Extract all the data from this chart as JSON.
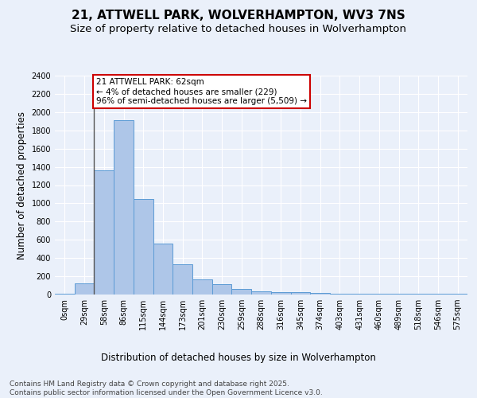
{
  "title": "21, ATTWELL PARK, WOLVERHAMPTON, WV3 7NS",
  "subtitle": "Size of property relative to detached houses in Wolverhampton",
  "xlabel": "Distribution of detached houses by size in Wolverhampton",
  "ylabel": "Number of detached properties",
  "footer_line1": "Contains HM Land Registry data © Crown copyright and database right 2025.",
  "footer_line2": "Contains public sector information licensed under the Open Government Licence v3.0.",
  "bin_labels": [
    "0sqm",
    "29sqm",
    "58sqm",
    "86sqm",
    "115sqm",
    "144sqm",
    "173sqm",
    "201sqm",
    "230sqm",
    "259sqm",
    "288sqm",
    "316sqm",
    "345sqm",
    "374sqm",
    "403sqm",
    "431sqm",
    "460sqm",
    "489sqm",
    "518sqm",
    "546sqm",
    "575sqm"
  ],
  "bar_values": [
    10,
    125,
    1360,
    1910,
    1050,
    560,
    335,
    170,
    115,
    60,
    35,
    30,
    25,
    20,
    5,
    5,
    5,
    5,
    5,
    5,
    10
  ],
  "bar_color": "#aec6e8",
  "bar_edge_color": "#5b9bd5",
  "background_color": "#eaf0fa",
  "plot_background_color": "#eaf0fa",
  "grid_color": "#ffffff",
  "annotation_text": "21 ATTWELL PARK: 62sqm\n← 4% of detached houses are smaller (229)\n96% of semi-detached houses are larger (5,509) →",
  "annotation_box_color": "#ffffff",
  "annotation_box_edge_color": "#cc0000",
  "vertical_line_color": "#555555",
  "ylim": [
    0,
    2400
  ],
  "yticks": [
    0,
    200,
    400,
    600,
    800,
    1000,
    1200,
    1400,
    1600,
    1800,
    2000,
    2200,
    2400
  ],
  "title_fontsize": 11,
  "subtitle_fontsize": 9.5,
  "label_fontsize": 8.5,
  "tick_fontsize": 7,
  "footer_fontsize": 6.5,
  "annotation_fontsize": 7.5
}
